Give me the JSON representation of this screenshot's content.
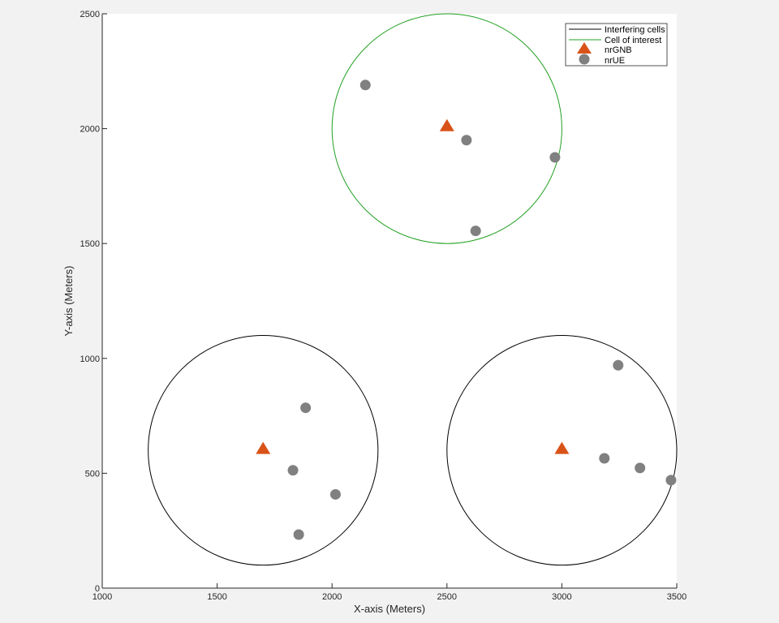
{
  "chart_data": {
    "type": "scatter",
    "title": "",
    "xlabel": "X-axis (Meters)",
    "ylabel": "Y-axis (Meters)",
    "xlim": [
      1000,
      3500
    ],
    "ylim": [
      0,
      2500
    ],
    "xticks": [
      1000,
      1500,
      2000,
      2500,
      3000,
      3500
    ],
    "yticks": [
      0,
      500,
      1000,
      1500,
      2000,
      2500
    ],
    "grid": false,
    "legend_position": "top-right",
    "legend": [
      "Interfering cells",
      "Cell of interest",
      "nrGNB",
      "nrUE"
    ],
    "cells": [
      {
        "type": "interest",
        "center": [
          2500,
          2000
        ],
        "radius": 500
      },
      {
        "type": "interfering",
        "center": [
          1700,
          600
        ],
        "radius": 500
      },
      {
        "type": "interfering",
        "center": [
          3000,
          600
        ],
        "radius": 500
      }
    ],
    "series": [
      {
        "name": "nrGNB",
        "marker": "triangle",
        "color": "#d95319",
        "points": [
          [
            2500,
            2010
          ],
          [
            1700,
            605
          ],
          [
            3000,
            605
          ]
        ]
      },
      {
        "name": "nrUE",
        "marker": "circle",
        "color": "#808080",
        "points": [
          [
            2145,
            2190
          ],
          [
            2585,
            1950
          ],
          [
            2970,
            1875
          ],
          [
            2625,
            1555
          ],
          [
            1885,
            785
          ],
          [
            1830,
            513
          ],
          [
            2015,
            408
          ],
          [
            1855,
            233
          ],
          [
            3245,
            970
          ],
          [
            3185,
            565
          ],
          [
            3340,
            523
          ],
          [
            3475,
            470
          ]
        ]
      }
    ],
    "colors": {
      "interfering": "#000000",
      "interest": "#22a022",
      "plot_bg": "#ffffff",
      "figure_bg": "#f2f2f2"
    }
  }
}
